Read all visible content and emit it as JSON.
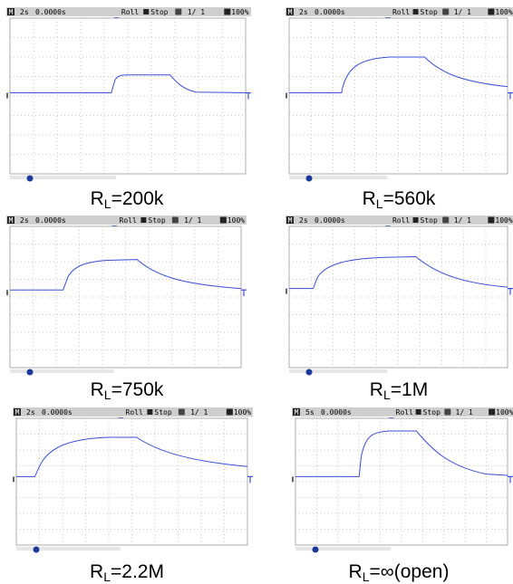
{
  "panels": [
    {
      "header": {
        "mode": "M",
        "timebase": "2s",
        "delay": "0.0000s",
        "roll": "Roll",
        "stop": "Stop",
        "page": "1/  1",
        "zoom": "100%"
      },
      "caption": {
        "symbol": "R",
        "subscript": "L",
        "value": "=200k"
      }
    },
    {
      "header": {
        "mode": "M",
        "timebase": "2s",
        "delay": "0.0000s",
        "roll": "Roll",
        "stop": "Stop",
        "page": "1/  1",
        "zoom": "100%"
      },
      "caption": {
        "symbol": "R",
        "subscript": "L",
        "value": "=560k"
      }
    },
    {
      "header": {
        "mode": "M",
        "timebase": "2s",
        "delay": "0.0000s",
        "roll": "Roll",
        "stop": "Stop",
        "page": "1/  1",
        "zoom": "100%"
      },
      "caption": {
        "symbol": "R",
        "subscript": "L",
        "value": "=750k"
      }
    },
    {
      "header": {
        "mode": "M",
        "timebase": "2s",
        "delay": "0.0000s",
        "roll": "Roll",
        "stop": "Stop",
        "page": "1/  1",
        "zoom": "100%"
      },
      "caption": {
        "symbol": "R",
        "subscript": "L",
        "value": "=1M"
      }
    },
    {
      "header": {
        "mode": "M",
        "timebase": "2s",
        "delay": "0.0000s",
        "roll": "Roll",
        "stop": "Stop",
        "page": "1/  1",
        "zoom": "100%"
      },
      "caption": {
        "symbol": "R",
        "subscript": "L",
        "value": "=2.2M"
      }
    },
    {
      "header": {
        "mode": "M",
        "timebase": "5s",
        "delay": "0.0000s",
        "roll": "Roll",
        "stop": "Stop",
        "page": "1/  1",
        "zoom": "100%"
      },
      "caption": {
        "symbol": "R",
        "subscript": "L",
        "value": "=∞(open)"
      }
    }
  ]
}
